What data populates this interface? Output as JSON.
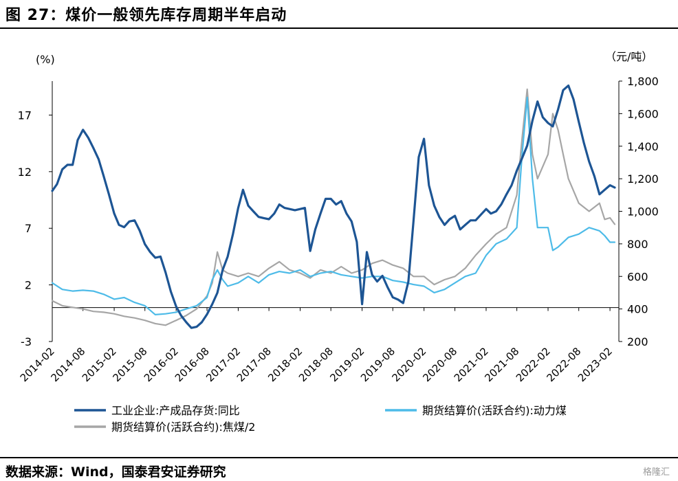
{
  "header": {
    "title": "图 27：煤价一般领先库存周期半年启动"
  },
  "footer": {
    "source": "数据来源：Wind，国泰君安证券研究",
    "watermark": "格隆汇"
  },
  "colors": {
    "series1": "#1d5594",
    "series2": "#4dbbe8",
    "series3": "#a6a6a6",
    "axis": "#000000"
  },
  "chart_data": {
    "type": "line",
    "title": "图 27：煤价一般领先库存周期半年启动",
    "y_left": {
      "unit_label": "(%)",
      "ylim": [
        -3,
        20
      ],
      "ticks": [
        -3,
        2,
        7,
        12,
        17
      ],
      "tick_labels": [
        "-3",
        "2",
        "7",
        "12",
        "17"
      ]
    },
    "y_right": {
      "unit_label": "（元/吨）",
      "ylim": [
        200,
        1800
      ],
      "ticks": [
        200,
        400,
        600,
        800,
        1000,
        1200,
        1400,
        1600,
        1800
      ],
      "tick_labels": [
        "200",
        "400",
        "600",
        "800",
        "1,000",
        "1,200",
        "1,400",
        "1,600",
        "1,800"
      ]
    },
    "x_ticks": [
      "2014-02",
      "2014-08",
      "2015-02",
      "2015-08",
      "2016-02",
      "2016-08",
      "2017-02",
      "2017-08",
      "2018-02",
      "2018-08",
      "2019-02",
      "2019-08",
      "2020-02",
      "2020-08",
      "2021-02",
      "2021-08",
      "2022-02",
      "2022-08",
      "2023-02"
    ],
    "grid": false,
    "legend_position": "bottom",
    "series": [
      {
        "name": "工业企业:产成品存货:同比",
        "axis": "left",
        "points": [
          [
            "2014-02",
            10.3
          ],
          [
            "2014-03",
            10.9
          ],
          [
            "2014-04",
            12.2
          ],
          [
            "2014-05",
            12.6
          ],
          [
            "2014-06",
            12.6
          ],
          [
            "2014-07",
            14.8
          ],
          [
            "2014-08",
            15.7
          ],
          [
            "2014-09",
            15.0
          ],
          [
            "2014-10",
            14.1
          ],
          [
            "2014-11",
            13.1
          ],
          [
            "2014-12",
            11.6
          ],
          [
            "2015-01",
            10.0
          ],
          [
            "2015-02",
            8.3
          ],
          [
            "2015-03",
            7.3
          ],
          [
            "2015-04",
            7.1
          ],
          [
            "2015-05",
            7.6
          ],
          [
            "2015-06",
            7.7
          ],
          [
            "2015-07",
            6.8
          ],
          [
            "2015-08",
            5.6
          ],
          [
            "2015-09",
            4.9
          ],
          [
            "2015-10",
            4.4
          ],
          [
            "2015-11",
            4.5
          ],
          [
            "2015-12",
            3.1
          ],
          [
            "2016-01",
            1.4
          ],
          [
            "2016-02",
            0.1
          ],
          [
            "2016-03",
            -0.7
          ],
          [
            "2016-04",
            -1.3
          ],
          [
            "2016-05",
            -1.8
          ],
          [
            "2016-06",
            -1.7
          ],
          [
            "2016-07",
            -1.3
          ],
          [
            "2016-08",
            -0.6
          ],
          [
            "2016-09",
            0.3
          ],
          [
            "2016-10",
            1.3
          ],
          [
            "2016-11",
            3.3
          ],
          [
            "2016-12",
            4.5
          ],
          [
            "2017-01",
            6.5
          ],
          [
            "2017-02",
            8.8
          ],
          [
            "2017-03",
            10.4
          ],
          [
            "2017-04",
            9.0
          ],
          [
            "2017-05",
            8.5
          ],
          [
            "2017-06",
            8.0
          ],
          [
            "2017-07",
            7.9
          ],
          [
            "2017-08",
            7.8
          ],
          [
            "2017-09",
            8.3
          ],
          [
            "2017-10",
            9.1
          ],
          [
            "2017-11",
            8.8
          ],
          [
            "2017-12",
            8.7
          ],
          [
            "2018-01",
            8.6
          ],
          [
            "2018-02",
            8.7
          ],
          [
            "2018-03",
            8.8
          ],
          [
            "2018-04",
            5.0
          ],
          [
            "2018-05",
            6.9
          ],
          [
            "2018-06",
            8.3
          ],
          [
            "2018-07",
            9.6
          ],
          [
            "2018-08",
            9.6
          ],
          [
            "2018-09",
            9.1
          ],
          [
            "2018-10",
            9.4
          ],
          [
            "2018-11",
            8.3
          ],
          [
            "2018-12",
            7.6
          ],
          [
            "2019-01",
            5.8
          ],
          [
            "2019-02",
            0.3
          ],
          [
            "2019-03",
            4.9
          ],
          [
            "2019-04",
            2.9
          ],
          [
            "2019-05",
            2.3
          ],
          [
            "2019-06",
            2.8
          ],
          [
            "2019-07",
            1.8
          ],
          [
            "2019-08",
            0.9
          ],
          [
            "2019-09",
            0.7
          ],
          [
            "2019-10",
            0.4
          ],
          [
            "2019-11",
            2.3
          ],
          [
            "2019-12",
            7.6
          ],
          [
            "2020-01",
            13.3
          ],
          [
            "2020-02",
            14.9
          ],
          [
            "2020-03",
            10.8
          ],
          [
            "2020-04",
            9.0
          ],
          [
            "2020-05",
            8.0
          ],
          [
            "2020-06",
            7.3
          ],
          [
            "2020-07",
            7.8
          ],
          [
            "2020-08",
            8.1
          ],
          [
            "2020-09",
            6.9
          ],
          [
            "2020-10",
            7.3
          ],
          [
            "2020-11",
            7.7
          ],
          [
            "2020-12",
            7.7
          ],
          [
            "2021-01",
            8.2
          ],
          [
            "2021-02",
            8.7
          ],
          [
            "2021-03",
            8.3
          ],
          [
            "2021-04",
            8.5
          ],
          [
            "2021-05",
            9.1
          ],
          [
            "2021-06",
            10.0
          ],
          [
            "2021-07",
            10.8
          ],
          [
            "2021-08",
            12.1
          ],
          [
            "2021-09",
            13.2
          ],
          [
            "2021-10",
            14.3
          ],
          [
            "2021-11",
            16.5
          ],
          [
            "2021-12",
            18.2
          ],
          [
            "2022-01",
            16.8
          ],
          [
            "2022-02",
            16.3
          ],
          [
            "2022-03",
            16.0
          ],
          [
            "2022-04",
            17.5
          ],
          [
            "2022-05",
            19.2
          ],
          [
            "2022-06",
            19.6
          ],
          [
            "2022-07",
            18.4
          ],
          [
            "2022-08",
            16.4
          ],
          [
            "2022-09",
            14.5
          ],
          [
            "2022-10",
            12.9
          ],
          [
            "2022-11",
            11.6
          ],
          [
            "2022-12",
            10.0
          ],
          [
            "2023-01",
            10.4
          ],
          [
            "2023-02",
            10.8
          ],
          [
            "2023-03",
            10.6
          ]
        ]
      },
      {
        "name": "期货结算价(活跃合约):动力煤",
        "axis": "right",
        "points": [
          [
            "2014-02",
            560
          ],
          [
            "2014-04",
            520
          ],
          [
            "2014-06",
            510
          ],
          [
            "2014-08",
            515
          ],
          [
            "2014-10",
            510
          ],
          [
            "2014-12",
            490
          ],
          [
            "2015-02",
            460
          ],
          [
            "2015-04",
            470
          ],
          [
            "2015-06",
            440
          ],
          [
            "2015-08",
            420
          ],
          [
            "2015-10",
            365
          ],
          [
            "2015-12",
            370
          ],
          [
            "2016-02",
            380
          ],
          [
            "2016-04",
            400
          ],
          [
            "2016-06",
            420
          ],
          [
            "2016-08",
            470
          ],
          [
            "2016-09",
            580
          ],
          [
            "2016-10",
            640
          ],
          [
            "2016-11",
            580
          ],
          [
            "2016-12",
            540
          ],
          [
            "2017-02",
            560
          ],
          [
            "2017-04",
            600
          ],
          [
            "2017-06",
            560
          ],
          [
            "2017-08",
            610
          ],
          [
            "2017-10",
            630
          ],
          [
            "2017-12",
            620
          ],
          [
            "2018-02",
            640
          ],
          [
            "2018-04",
            600
          ],
          [
            "2018-06",
            620
          ],
          [
            "2018-08",
            630
          ],
          [
            "2018-10",
            610
          ],
          [
            "2018-12",
            600
          ],
          [
            "2019-02",
            590
          ],
          [
            "2019-04",
            600
          ],
          [
            "2019-06",
            600
          ],
          [
            "2019-08",
            575
          ],
          [
            "2019-10",
            565
          ],
          [
            "2019-12",
            550
          ],
          [
            "2020-02",
            540
          ],
          [
            "2020-04",
            500
          ],
          [
            "2020-06",
            520
          ],
          [
            "2020-08",
            560
          ],
          [
            "2020-10",
            600
          ],
          [
            "2020-12",
            620
          ],
          [
            "2021-02",
            730
          ],
          [
            "2021-04",
            800
          ],
          [
            "2021-06",
            830
          ],
          [
            "2021-08",
            900
          ],
          [
            "2021-09",
            1350
          ],
          [
            "2021-10",
            1700
          ],
          [
            "2021-11",
            1200
          ],
          [
            "2021-12",
            900
          ],
          [
            "2022-02",
            900
          ],
          [
            "2022-03",
            760
          ],
          [
            "2022-04",
            780
          ],
          [
            "2022-06",
            840
          ],
          [
            "2022-08",
            860
          ],
          [
            "2022-10",
            900
          ],
          [
            "2022-12",
            880
          ],
          [
            "2023-01",
            850
          ],
          [
            "2023-02",
            810
          ],
          [
            "2023-03",
            810
          ]
        ]
      },
      {
        "name": "期货结算价(活跃合约):焦煤/2",
        "axis": "right",
        "points": [
          [
            "2014-02",
            450
          ],
          [
            "2014-04",
            420
          ],
          [
            "2014-06",
            410
          ],
          [
            "2014-08",
            400
          ],
          [
            "2014-10",
            385
          ],
          [
            "2014-12",
            380
          ],
          [
            "2015-02",
            370
          ],
          [
            "2015-04",
            355
          ],
          [
            "2015-06",
            345
          ],
          [
            "2015-08",
            330
          ],
          [
            "2015-10",
            310
          ],
          [
            "2015-12",
            300
          ],
          [
            "2016-02",
            330
          ],
          [
            "2016-04",
            360
          ],
          [
            "2016-06",
            400
          ],
          [
            "2016-08",
            480
          ],
          [
            "2016-09",
            560
          ],
          [
            "2016-10",
            750
          ],
          [
            "2016-11",
            640
          ],
          [
            "2016-12",
            620
          ],
          [
            "2017-02",
            600
          ],
          [
            "2017-04",
            620
          ],
          [
            "2017-06",
            600
          ],
          [
            "2017-08",
            650
          ],
          [
            "2017-10",
            690
          ],
          [
            "2017-12",
            640
          ],
          [
            "2018-02",
            620
          ],
          [
            "2018-04",
            590
          ],
          [
            "2018-06",
            640
          ],
          [
            "2018-08",
            620
          ],
          [
            "2018-10",
            660
          ],
          [
            "2018-12",
            620
          ],
          [
            "2019-02",
            640
          ],
          [
            "2019-04",
            680
          ],
          [
            "2019-06",
            700
          ],
          [
            "2019-08",
            670
          ],
          [
            "2019-10",
            650
          ],
          [
            "2019-12",
            600
          ],
          [
            "2020-02",
            600
          ],
          [
            "2020-04",
            550
          ],
          [
            "2020-06",
            580
          ],
          [
            "2020-08",
            600
          ],
          [
            "2020-10",
            650
          ],
          [
            "2020-12",
            730
          ],
          [
            "2021-02",
            800
          ],
          [
            "2021-04",
            860
          ],
          [
            "2021-06",
            900
          ],
          [
            "2021-08",
            1100
          ],
          [
            "2021-09",
            1450
          ],
          [
            "2021-10",
            1750
          ],
          [
            "2021-11",
            1350
          ],
          [
            "2021-12",
            1200
          ],
          [
            "2022-02",
            1350
          ],
          [
            "2022-03",
            1600
          ],
          [
            "2022-04",
            1500
          ],
          [
            "2022-05",
            1350
          ],
          [
            "2022-06",
            1200
          ],
          [
            "2022-08",
            1050
          ],
          [
            "2022-10",
            1000
          ],
          [
            "2022-12",
            1050
          ],
          [
            "2023-01",
            950
          ],
          [
            "2023-02",
            960
          ],
          [
            "2023-03",
            920
          ]
        ]
      }
    ]
  }
}
